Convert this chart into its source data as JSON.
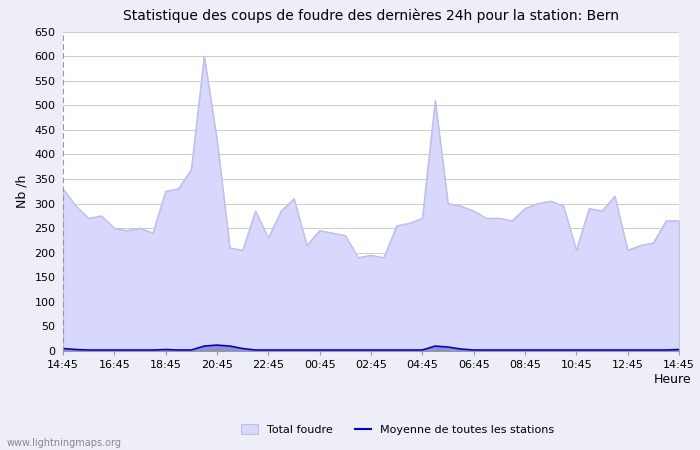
{
  "title": "Statistique des coups de foudre des dernières 24h pour la station: Bern",
  "xlabel": "Heure",
  "ylabel": "Nb /h",
  "xlabels": [
    "14:45",
    "16:45",
    "18:45",
    "20:45",
    "22:45",
    "00:45",
    "02:45",
    "04:45",
    "06:45",
    "08:45",
    "10:45",
    "12:45",
    "14:45"
  ],
  "ylim": [
    0,
    650
  ],
  "yticks": [
    0,
    50,
    100,
    150,
    200,
    250,
    300,
    350,
    400,
    450,
    500,
    550,
    600,
    650
  ],
  "bg_color": "#eeeef8",
  "plot_bg_color": "#ffffff",
  "grid_color": "#cccccc",
  "total_foudre_color": "#d8d8ff",
  "total_foudre_edge_color": "#c0c0e8",
  "bern_color": "#9090cc",
  "moyenne_color": "#0000cc",
  "watermark": "www.lightningmaps.org",
  "total_foudre_x": [
    0,
    1,
    2,
    3,
    4,
    5,
    6,
    7,
    8,
    9,
    10,
    11,
    12,
    13,
    14,
    15,
    16,
    17,
    18,
    19,
    20,
    21,
    22,
    23,
    24,
    25,
    26,
    27,
    28,
    29,
    30,
    31,
    32,
    33,
    34,
    35,
    36,
    37,
    38,
    39,
    40,
    41,
    42,
    43,
    44,
    45,
    46,
    47,
    48
  ],
  "total_foudre_y": [
    330,
    295,
    270,
    275,
    250,
    245,
    250,
    240,
    325,
    330,
    370,
    600,
    430,
    210,
    205,
    285,
    230,
    285,
    310,
    215,
    245,
    240,
    235,
    190,
    195,
    190,
    255,
    260,
    270,
    510,
    300,
    295,
    285,
    270,
    270,
    265,
    290,
    300,
    305,
    295,
    205,
    290,
    285,
    315,
    205,
    215,
    220,
    265,
    265
  ],
  "bern_y": [
    5,
    3,
    2,
    2,
    2,
    2,
    2,
    2,
    3,
    2,
    2,
    10,
    12,
    10,
    5,
    2,
    2,
    2,
    2,
    2,
    2,
    2,
    2,
    2,
    2,
    2,
    2,
    2,
    2,
    10,
    8,
    4,
    2,
    2,
    2,
    2,
    2,
    2,
    2,
    2,
    2,
    2,
    2,
    2,
    2,
    2,
    2,
    2,
    3
  ],
  "moyenne_y": [
    5,
    3,
    2,
    2,
    2,
    2,
    2,
    2,
    3,
    2,
    2,
    10,
    12,
    10,
    5,
    2,
    2,
    2,
    2,
    2,
    2,
    2,
    2,
    2,
    2,
    2,
    2,
    2,
    2,
    10,
    8,
    4,
    2,
    2,
    2,
    2,
    2,
    2,
    2,
    2,
    2,
    2,
    2,
    2,
    2,
    2,
    2,
    2,
    3
  ]
}
